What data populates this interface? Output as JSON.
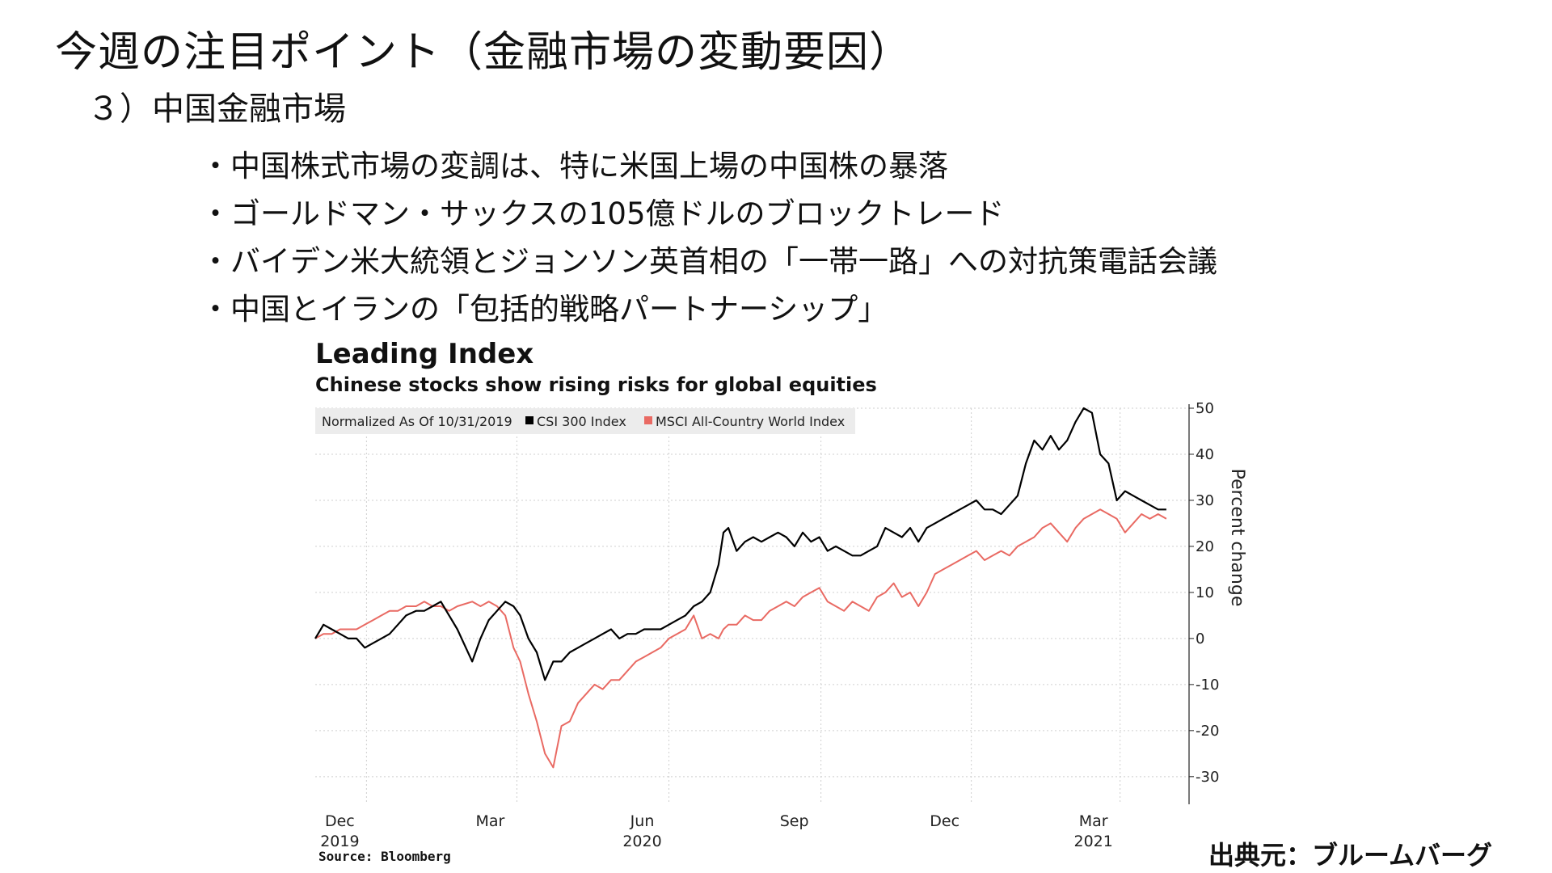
{
  "slide": {
    "title": "今週の注目ポイント（金融市場の変動要因）",
    "subtitle": "３）中国金融市場",
    "bullets": [
      "・中国株式市場の変調は、特に米国上場の中国株の暴落",
      "・ゴールドマン・サックスの105億ドルのブロックトレード",
      "・バイデン米大統領とジョンソン英首相の「一帯一路」への対抗策電話会議",
      "・中国とイランの「包括的戦略パートナーシップ」"
    ],
    "credit": "出典元：ブルームバーグ"
  },
  "chart_data": {
    "type": "line",
    "title": "Leading Index",
    "subtitle": "Chinese stocks show rising risks for global equities",
    "source": "Source: Bloomberg",
    "legend_note": "Normalized As Of 10/31/2019",
    "legend_placement": "top-left",
    "ylabel": "Percent change",
    "ylim": [
      -36,
      50
    ],
    "y_ticks": [
      50,
      40,
      30,
      20,
      10,
      0,
      -10,
      -20,
      -30
    ],
    "xlim": [
      "2019-10-31",
      "2021-03-31"
    ],
    "x_ticks": [
      {
        "date": "2019-12-01",
        "label": "Dec",
        "year": "2019"
      },
      {
        "date": "2020-03-01",
        "label": "Mar",
        "year": ""
      },
      {
        "date": "2020-06-01",
        "label": "Jun",
        "year": "2020"
      },
      {
        "date": "2020-09-01",
        "label": "Sep",
        "year": ""
      },
      {
        "date": "2020-12-01",
        "label": "Dec",
        "year": ""
      },
      {
        "date": "2021-03-01",
        "label": "Mar",
        "year": "2021"
      }
    ],
    "grid": true,
    "series": [
      {
        "name": "CSI 300 Index",
        "color": "#000000",
        "x": [
          "2019-10-31",
          "2019-11-05",
          "2019-11-10",
          "2019-11-15",
          "2019-11-20",
          "2019-11-25",
          "2019-11-30",
          "2019-12-05",
          "2019-12-10",
          "2019-12-15",
          "2019-12-20",
          "2019-12-25",
          "2019-12-31",
          "2020-01-05",
          "2020-01-10",
          "2020-01-15",
          "2020-01-20",
          "2020-01-25",
          "2020-02-03",
          "2020-02-08",
          "2020-02-13",
          "2020-02-18",
          "2020-02-23",
          "2020-02-28",
          "2020-03-03",
          "2020-03-08",
          "2020-03-13",
          "2020-03-18",
          "2020-03-23",
          "2020-03-28",
          "2020-04-02",
          "2020-04-07",
          "2020-04-12",
          "2020-04-17",
          "2020-04-22",
          "2020-04-27",
          "2020-05-02",
          "2020-05-07",
          "2020-05-12",
          "2020-05-17",
          "2020-05-22",
          "2020-05-27",
          "2020-06-01",
          "2020-06-06",
          "2020-06-11",
          "2020-06-16",
          "2020-06-21",
          "2020-06-26",
          "2020-07-01",
          "2020-07-04",
          "2020-07-07",
          "2020-07-12",
          "2020-07-17",
          "2020-07-22",
          "2020-07-27",
          "2020-08-01",
          "2020-08-06",
          "2020-08-11",
          "2020-08-16",
          "2020-08-21",
          "2020-08-26",
          "2020-08-31",
          "2020-09-05",
          "2020-09-10",
          "2020-09-15",
          "2020-09-20",
          "2020-09-25",
          "2020-09-30",
          "2020-10-05",
          "2020-10-10",
          "2020-10-15",
          "2020-10-20",
          "2020-10-25",
          "2020-10-30",
          "2020-11-04",
          "2020-11-09",
          "2020-11-14",
          "2020-11-19",
          "2020-11-24",
          "2020-11-29",
          "2020-12-04",
          "2020-12-09",
          "2020-12-14",
          "2020-12-19",
          "2020-12-24",
          "2020-12-29",
          "2021-01-03",
          "2021-01-08",
          "2021-01-13",
          "2021-01-18",
          "2021-01-23",
          "2021-01-28",
          "2021-02-02",
          "2021-02-07",
          "2021-02-12",
          "2021-02-17",
          "2021-02-22",
          "2021-02-27",
          "2021-03-04",
          "2021-03-09",
          "2021-03-14",
          "2021-03-19",
          "2021-03-24",
          "2021-03-29"
        ],
        "values": [
          0,
          3,
          2,
          1,
          0,
          0,
          -2,
          -1,
          0,
          1,
          3,
          5,
          6,
          6,
          7,
          8,
          5,
          2,
          -5,
          0,
          4,
          6,
          8,
          7,
          5,
          0,
          -3,
          -9,
          -5,
          -5,
          -3,
          -2,
          -1,
          0,
          1,
          2,
          0,
          1,
          1,
          2,
          2,
          2,
          3,
          4,
          5,
          7,
          8,
          10,
          16,
          23,
          24,
          19,
          21,
          22,
          21,
          22,
          23,
          22,
          20,
          23,
          21,
          22,
          19,
          20,
          19,
          18,
          18,
          19,
          20,
          24,
          23,
          22,
          24,
          21,
          24,
          25,
          26,
          27,
          28,
          29,
          30,
          28,
          28,
          27,
          29,
          31,
          38,
          43,
          41,
          44,
          41,
          43,
          47,
          50,
          49,
          40,
          38,
          30,
          32,
          31,
          30,
          29,
          28,
          28
        ]
      },
      {
        "name": "MSCI All-Country World Index",
        "color": "#e96a63",
        "x": [
          "2019-10-31",
          "2019-11-05",
          "2019-11-10",
          "2019-11-15",
          "2019-11-20",
          "2019-11-25",
          "2019-11-30",
          "2019-12-05",
          "2019-12-10",
          "2019-12-15",
          "2019-12-20",
          "2019-12-25",
          "2019-12-31",
          "2020-01-05",
          "2020-01-10",
          "2020-01-15",
          "2020-01-20",
          "2020-01-25",
          "2020-02-03",
          "2020-02-08",
          "2020-02-13",
          "2020-02-18",
          "2020-02-23",
          "2020-02-28",
          "2020-03-03",
          "2020-03-08",
          "2020-03-13",
          "2020-03-18",
          "2020-03-23",
          "2020-03-28",
          "2020-04-02",
          "2020-04-07",
          "2020-04-12",
          "2020-04-17",
          "2020-04-22",
          "2020-04-27",
          "2020-05-02",
          "2020-05-07",
          "2020-05-12",
          "2020-05-17",
          "2020-05-22",
          "2020-05-27",
          "2020-06-01",
          "2020-06-06",
          "2020-06-11",
          "2020-06-16",
          "2020-06-21",
          "2020-06-26",
          "2020-07-01",
          "2020-07-04",
          "2020-07-07",
          "2020-07-12",
          "2020-07-17",
          "2020-07-22",
          "2020-07-27",
          "2020-08-01",
          "2020-08-06",
          "2020-08-11",
          "2020-08-16",
          "2020-08-21",
          "2020-08-26",
          "2020-08-31",
          "2020-09-05",
          "2020-09-10",
          "2020-09-15",
          "2020-09-20",
          "2020-09-25",
          "2020-09-30",
          "2020-10-05",
          "2020-10-10",
          "2020-10-15",
          "2020-10-20",
          "2020-10-25",
          "2020-10-30",
          "2020-11-04",
          "2020-11-09",
          "2020-11-14",
          "2020-11-19",
          "2020-11-24",
          "2020-11-29",
          "2020-12-04",
          "2020-12-09",
          "2020-12-14",
          "2020-12-19",
          "2020-12-24",
          "2020-12-29",
          "2021-01-03",
          "2021-01-08",
          "2021-01-13",
          "2021-01-18",
          "2021-01-23",
          "2021-01-28",
          "2021-02-02",
          "2021-02-07",
          "2021-02-12",
          "2021-02-17",
          "2021-02-22",
          "2021-02-27",
          "2021-03-04",
          "2021-03-09",
          "2021-03-14",
          "2021-03-19",
          "2021-03-24",
          "2021-03-29"
        ],
        "values": [
          0,
          1,
          1,
          2,
          2,
          2,
          3,
          4,
          5,
          6,
          6,
          7,
          7,
          8,
          7,
          7,
          6,
          7,
          8,
          7,
          8,
          7,
          5,
          -2,
          -5,
          -12,
          -18,
          -25,
          -28,
          -19,
          -18,
          -14,
          -12,
          -10,
          -11,
          -9,
          -9,
          -7,
          -5,
          -4,
          -3,
          -2,
          0,
          1,
          2,
          5,
          0,
          1,
          0,
          2,
          3,
          3,
          5,
          4,
          4,
          6,
          7,
          8,
          7,
          9,
          10,
          11,
          8,
          7,
          6,
          8,
          7,
          6,
          9,
          10,
          12,
          9,
          10,
          7,
          10,
          14,
          15,
          16,
          17,
          18,
          19,
          17,
          18,
          19,
          18,
          20,
          21,
          22,
          24,
          25,
          23,
          21,
          24,
          26,
          27,
          28,
          27,
          26,
          23,
          25,
          27,
          26,
          27,
          26
        ]
      }
    ]
  }
}
